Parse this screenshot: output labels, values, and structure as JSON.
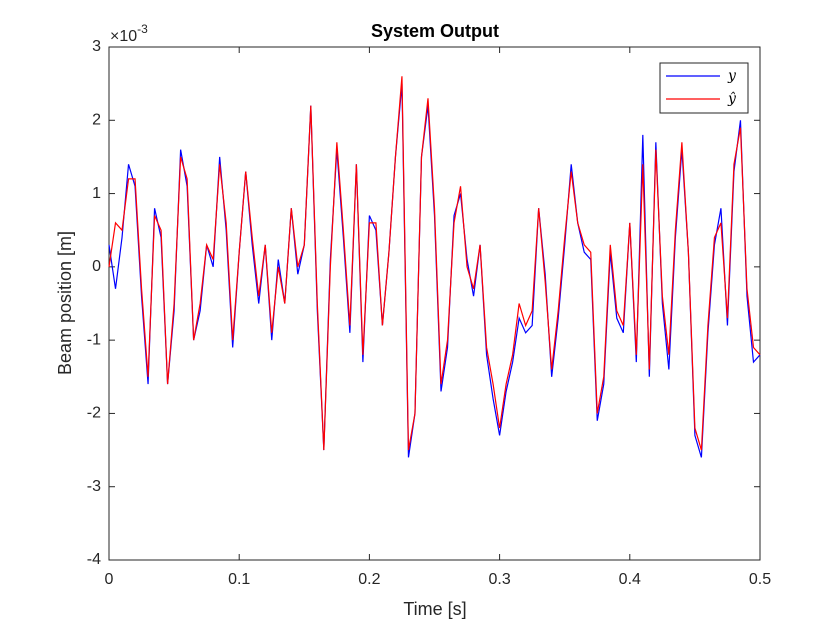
{
  "chart_data": {
    "type": "line",
    "title": "System Output",
    "xlabel": "Time [s]",
    "ylabel": "Beam position [m]",
    "y_multiplier": {
      "base": "×10",
      "exponent": "-3"
    },
    "x": [
      0,
      0.005,
      0.01,
      0.015,
      0.02,
      0.025,
      0.03,
      0.035,
      0.04,
      0.045,
      0.05,
      0.055,
      0.06,
      0.065,
      0.07,
      0.075,
      0.08,
      0.085,
      0.09,
      0.095,
      0.1,
      0.105,
      0.11,
      0.115,
      0.12,
      0.125,
      0.13,
      0.135,
      0.14,
      0.145,
      0.15,
      0.155,
      0.16,
      0.165,
      0.17,
      0.175,
      0.18,
      0.185,
      0.19,
      0.195,
      0.2,
      0.205,
      0.21,
      0.215,
      0.22,
      0.225,
      0.23,
      0.235,
      0.24,
      0.245,
      0.25,
      0.255,
      0.26,
      0.265,
      0.27,
      0.275,
      0.28,
      0.285,
      0.29,
      0.295,
      0.3,
      0.305,
      0.31,
      0.315,
      0.32,
      0.325,
      0.33,
      0.335,
      0.34,
      0.345,
      0.35,
      0.355,
      0.36,
      0.365,
      0.37,
      0.375,
      0.38,
      0.385,
      0.39,
      0.395,
      0.4,
      0.405,
      0.41,
      0.415,
      0.42,
      0.425,
      0.43,
      0.435,
      0.44,
      0.445,
      0.45,
      0.455,
      0.46,
      0.465,
      0.47,
      0.475,
      0.48,
      0.485,
      0.49,
      0.495,
      0.5
    ],
    "series": [
      {
        "name": "y",
        "color": "#0000ff",
        "values": [
          0.3,
          -0.3,
          0.4,
          1.4,
          1.1,
          -0.4,
          -1.6,
          0.8,
          0.4,
          -1.6,
          -0.6,
          1.6,
          1.1,
          -1.0,
          -0.6,
          0.3,
          0.0,
          1.5,
          0.5,
          -1.1,
          0.2,
          1.3,
          0.3,
          -0.5,
          0.3,
          -1.0,
          0.1,
          -0.5,
          0.8,
          -0.1,
          0.3,
          2.2,
          -0.6,
          -2.5,
          0.1,
          1.6,
          0.4,
          -0.9,
          1.4,
          -1.3,
          0.7,
          0.5,
          -0.8,
          0.2,
          1.5,
          2.5,
          -2.6,
          -2.0,
          1.5,
          2.2,
          0.7,
          -1.7,
          -1.1,
          0.7,
          1.0,
          0.1,
          -0.4,
          0.3,
          -1.2,
          -1.8,
          -2.3,
          -1.7,
          -1.3,
          -0.7,
          -0.9,
          -0.8,
          0.8,
          -0.1,
          -1.5,
          -0.7,
          0.3,
          1.4,
          0.6,
          0.2,
          0.1,
          -2.1,
          -1.6,
          0.2,
          -0.7,
          -0.9,
          0.6,
          -1.3,
          1.8,
          -1.5,
          1.7,
          -0.5,
          -1.4,
          0.4,
          1.6,
          0.2,
          -2.3,
          -2.6,
          -0.9,
          0.3,
          0.8,
          -0.8,
          1.3,
          2.0,
          -0.4,
          -1.3,
          -1.2
        ]
      },
      {
        "name": "ŷ",
        "color": "#ff0000",
        "values": [
          0.0,
          0.6,
          0.5,
          1.2,
          1.2,
          -0.3,
          -1.5,
          0.7,
          0.5,
          -1.6,
          -0.5,
          1.5,
          1.2,
          -1.0,
          -0.5,
          0.3,
          0.1,
          1.4,
          0.6,
          -1.0,
          0.2,
          1.3,
          0.4,
          -0.4,
          0.3,
          -0.9,
          0.0,
          -0.5,
          0.8,
          0.0,
          0.3,
          2.2,
          -0.5,
          -2.5,
          0.0,
          1.7,
          0.5,
          -0.8,
          1.4,
          -1.2,
          0.6,
          0.6,
          -0.8,
          0.2,
          1.5,
          2.6,
          -2.5,
          -2.0,
          1.5,
          2.3,
          0.8,
          -1.6,
          -1.0,
          0.6,
          1.1,
          0.0,
          -0.3,
          0.3,
          -1.1,
          -1.6,
          -2.2,
          -1.6,
          -1.2,
          -0.5,
          -0.8,
          -0.6,
          0.8,
          -0.2,
          -1.4,
          -0.6,
          0.4,
          1.3,
          0.6,
          0.3,
          0.2,
          -2.0,
          -1.5,
          0.3,
          -0.6,
          -0.8,
          0.6,
          -1.2,
          1.4,
          -1.4,
          1.6,
          -0.4,
          -1.2,
          0.5,
          1.7,
          0.2,
          -2.2,
          -2.5,
          -0.8,
          0.4,
          0.6,
          -0.7,
          1.4,
          1.9,
          -0.3,
          -1.1,
          -1.2
        ]
      }
    ],
    "xlim": [
      0,
      0.5
    ],
    "xticks": [
      0,
      0.1,
      0.2,
      0.3,
      0.4,
      0.5
    ],
    "ylim": [
      -4,
      3
    ],
    "yticks": [
      -4,
      -3,
      -2,
      -1,
      0,
      1,
      2,
      3
    ],
    "grid": false,
    "legend": "top-right"
  }
}
